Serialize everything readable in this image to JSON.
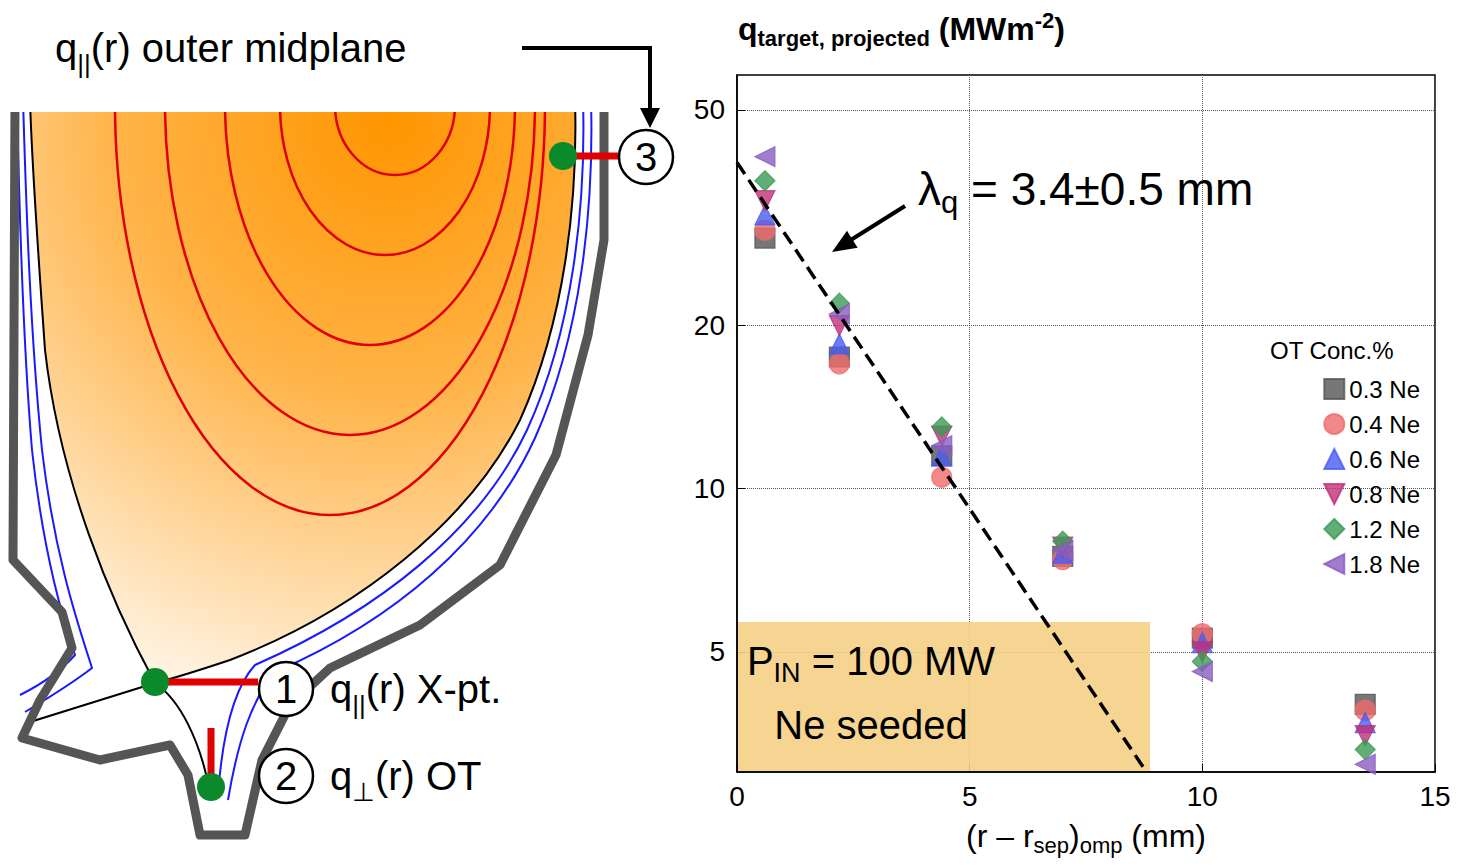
{
  "diagram": {
    "midplane_label": {
      "marker": "3",
      "text": [
        {
          "text": "q"
        },
        {
          "sub": "||"
        },
        {
          "text": "(r) outer midplane"
        }
      ]
    },
    "xpoint_label": {
      "marker": "1",
      "text": [
        {
          "text": "q"
        },
        {
          "sub": "||"
        },
        {
          "text": "(r) X-pt."
        }
      ]
    },
    "target_label": {
      "marker": "2",
      "text": [
        {
          "text": "q"
        },
        {
          "sub": "⊥"
        },
        {
          "text": "(r) OT"
        }
      ]
    }
  },
  "chart_data": {
    "type": "scatter",
    "title": [
      {
        "text": "q"
      },
      {
        "sub": "target, projected"
      },
      {
        "text": " (MWm"
      },
      {
        "sup": "-2"
      },
      {
        "text": ")"
      }
    ],
    "x_label": [
      {
        "text": "(r – r"
      },
      {
        "sub": "sep"
      },
      {
        "text": ")"
      },
      {
        "sub": "omp"
      },
      {
        "text": " (mm)"
      }
    ],
    "xlim": [
      0,
      15
    ],
    "xticks": [
      0,
      5,
      10,
      15
    ],
    "ylim": [
      3,
      58
    ],
    "yticks": [
      5,
      10,
      20,
      50
    ],
    "log": "y",
    "grid": true,
    "legend": "right",
    "legend_title": "OT Conc.%",
    "x": [
      0.6,
      2.2,
      4.4,
      7.0,
      10.0,
      13.5
    ],
    "series": [
      {
        "name": "0.3 Ne",
        "color": "#555555",
        "marker": "square",
        "values": [
          29,
          17.5,
          11.5,
          7.5,
          5.3,
          4.0
        ]
      },
      {
        "name": "0.4 Ne",
        "color": "#f06a6a",
        "marker": "circle",
        "values": [
          30,
          17,
          10.5,
          7.4,
          5.4,
          3.9
        ]
      },
      {
        "name": "0.6 Ne",
        "color": "#4a5cf0",
        "marker": "triangle-up",
        "values": [
          32,
          18.5,
          11.5,
          7.6,
          5.2,
          3.7
        ]
      },
      {
        "name": "0.8 Ne",
        "color": "#c0307a",
        "marker": "triangle-down",
        "values": [
          34,
          20,
          12.5,
          7.8,
          5.0,
          3.5
        ]
      },
      {
        "name": "1.2 Ne",
        "color": "#3a9a55",
        "marker": "diamond",
        "values": [
          37,
          22,
          13,
          8.0,
          4.8,
          3.3
        ]
      },
      {
        "name": "1.8 Ne",
        "color": "#8a5cc0",
        "marker": "triangle-left",
        "values": [
          41,
          21,
          12,
          7.7,
          4.6,
          3.1
        ]
      }
    ],
    "fit": {
      "type": "line",
      "line_style": "dashed",
      "color": "#000000",
      "x": [
        0,
        8.8
      ],
      "values": [
        40,
        3
      ],
      "label": [
        {
          "text": "λ"
        },
        {
          "sub": "q"
        },
        {
          "text": " = 3.4±0.5 mm"
        }
      ]
    },
    "annotation_box": {
      "lines": [
        [
          {
            "text": "P"
          },
          {
            "sub": "IN"
          },
          {
            "text": " = 100 MW"
          }
        ],
        [
          {
            "text": "Ne seeded"
          }
        ]
      ]
    }
  }
}
